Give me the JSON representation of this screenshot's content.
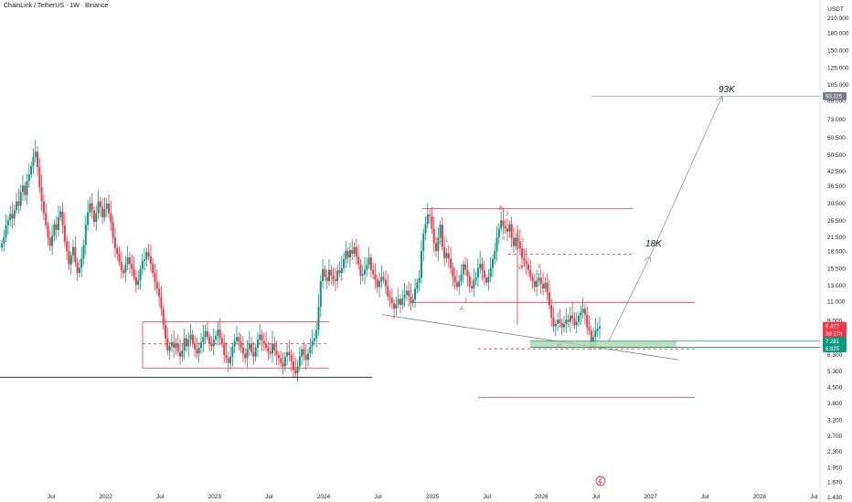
{
  "header": {
    "title": "ChainLink / TetherUS · 1W · Binance"
  },
  "chart_data": {
    "type": "candlestick",
    "symbol": "ChainLink / TetherUS",
    "interval": "1W",
    "exchange": "Binance",
    "currency": "USDT",
    "y_scale": "log",
    "ylim": [
      1.43,
      240
    ],
    "y_ticks": [
      "210.000",
      "180.000",
      "150.000",
      "125.000",
      "105.000",
      "89.000",
      "73.000",
      "60.500",
      "50.500",
      "42.500",
      "36.500",
      "30.500",
      "25.500",
      "21.500",
      "18.500",
      "15.500",
      "13.000",
      "11.000",
      "9.000",
      "7.500",
      "6.300",
      "5.300",
      "4.500",
      "3.800",
      "3.200",
      "2.700",
      "2.300",
      "1.950",
      "1.670",
      "1.430"
    ],
    "x_ticks": [
      "Jul",
      "2022",
      "Jul",
      "2023",
      "Jul",
      "2024",
      "Jul",
      "2025",
      "Jul",
      "2026",
      "Jul",
      "2027",
      "Jul",
      "2028",
      "Jul"
    ],
    "candles_weekly_close": [
      20.1,
      21.5,
      24.3,
      25.6,
      27.4,
      26.1,
      28.5,
      31.2,
      29.8,
      34.5,
      36.8,
      33.4,
      38.6,
      41.2,
      45.1,
      49.5,
      52.3,
      44.6,
      36.2,
      31.3,
      27.6,
      24.3,
      21.4,
      19.6,
      21.8,
      24.6,
      23.2,
      26.5,
      28.1,
      24.3,
      20.5,
      18.6,
      16.2,
      17.8,
      19.4,
      16.5,
      14.8,
      15.6,
      17.2,
      19.8,
      24.5,
      27.8,
      30.6,
      28.4,
      25.2,
      27.6,
      31.2,
      29.5,
      26.4,
      28.8,
      30.5,
      27.6,
      25.1,
      21.4,
      19.2,
      18.1,
      16.6,
      15.2,
      14.8,
      16.2,
      17.4,
      16.3,
      15.4,
      14.2,
      13.1,
      13.7,
      15.4,
      16.8,
      17.1,
      18.4,
      17.6,
      16.3,
      14.8,
      13.5,
      12.6,
      11.6,
      10.2,
      8.6,
      7.5,
      6.6,
      6.9,
      7.2,
      6.8,
      7.1,
      6.5,
      6.2,
      6.6,
      7.5,
      6.9,
      7.4,
      7.8,
      7.1,
      6.7,
      6.4,
      6.8,
      7.2,
      7.6,
      8.1,
      7.6,
      7.1,
      6.9,
      7.4,
      7.7,
      8.2,
      7.5,
      7.1,
      6.3,
      6.1,
      5.8,
      6.2,
      6.9,
      7.3,
      7.6,
      7.2,
      6.8,
      6.4,
      6.1,
      6.7,
      7.1,
      6.5,
      6.2,
      6.8,
      7.4,
      7.8,
      7.3,
      7.1,
      6.8,
      6.5,
      6.4,
      7.1,
      6.6,
      6.3,
      6.1,
      5.8,
      5.6,
      6.2,
      6.5,
      6.3,
      5.9,
      5.4,
      5.2,
      5.6,
      6.2,
      6.7,
      6.3,
      6.0,
      6.4,
      6.9,
      7.3,
      7.5,
      8.2,
      10.4,
      13.6,
      15.4,
      14.2,
      13.6,
      15.3,
      14.4,
      13.8,
      13.6,
      15.2,
      14.8,
      15.6,
      17.1,
      18.6,
      17.4,
      18.8,
      18.1,
      19.4,
      17.6,
      16.2,
      14.4,
      14.6,
      15.3,
      16.1,
      17.4,
      15.3,
      14.6,
      13.8,
      12.8,
      13.6,
      14.2,
      13.8,
      12.9,
      11.6,
      11.4,
      10.8,
      10.2,
      10.7,
      11.3,
      10.6,
      11.4,
      11.8,
      12.3,
      11.6,
      10.8,
      11.2,
      12.6,
      13.4,
      14.1,
      18.6,
      22.4,
      24.6,
      27.2,
      26.8,
      23.4,
      20.2,
      18.6,
      21.4,
      24.5,
      19.4,
      17.3,
      18.2,
      17.2,
      15.6,
      14.3,
      13.4,
      12.8,
      13.6,
      14.6,
      16.2,
      15.3,
      14.3,
      12.9,
      12.6,
      13.7,
      14.1,
      15.6,
      16.3,
      15.2,
      14.1,
      13.4,
      14.2,
      15.6,
      17.1,
      18.6,
      21.4,
      23.5,
      25.6,
      24.1,
      23.5,
      22.8,
      24.6,
      21.4,
      19.6,
      21.4,
      20.6,
      19.1,
      17.3,
      16.8,
      16.2,
      15.3,
      14.2,
      13.6,
      12.8,
      13.7,
      14.1,
      13.2,
      12.6,
      13.4,
      12.1,
      10.6,
      9.3,
      8.5,
      8.7,
      9.1,
      8.8,
      8.4,
      8.7,
      9.1,
      8.9,
      9.5,
      9.2,
      8.6,
      8.9,
      9.5,
      9.8,
      10.2,
      9.6,
      8.4,
      8.1,
      7.2,
      7.6,
      8.1,
      8.3,
      8.48
    ],
    "annotations": [
      "93K",
      "18K",
      "A",
      "B",
      "C",
      "1",
      "2",
      "3",
      "4",
      "5",
      "W",
      "X",
      "Y"
    ],
    "price_labels": {
      "target": "93.325",
      "last": "8.477",
      "countdown": "3d 17h",
      "green_upper": "7.281",
      "green_lower": "6.825",
      "currency": "USDT"
    },
    "levels": {
      "target": 93.325,
      "resist_top": 29,
      "mid_red_dashed": 18,
      "red_line_11": 10.9,
      "support_low": 4.05,
      "dashed_support": 6.72,
      "old_range_top": 8.9,
      "old_range_mid": 7.1,
      "old_range_bottom": 5.5,
      "old_black_line": 5.0
    },
    "colors": {
      "up": "#089981",
      "down": "#f23645",
      "line": "#f23645",
      "target": "#b2b5be",
      "last_badge": "#f23645",
      "zone_badge": "#089981",
      "zone_fill": "#a5d6a7",
      "target_badge": "#787b86"
    }
  }
}
